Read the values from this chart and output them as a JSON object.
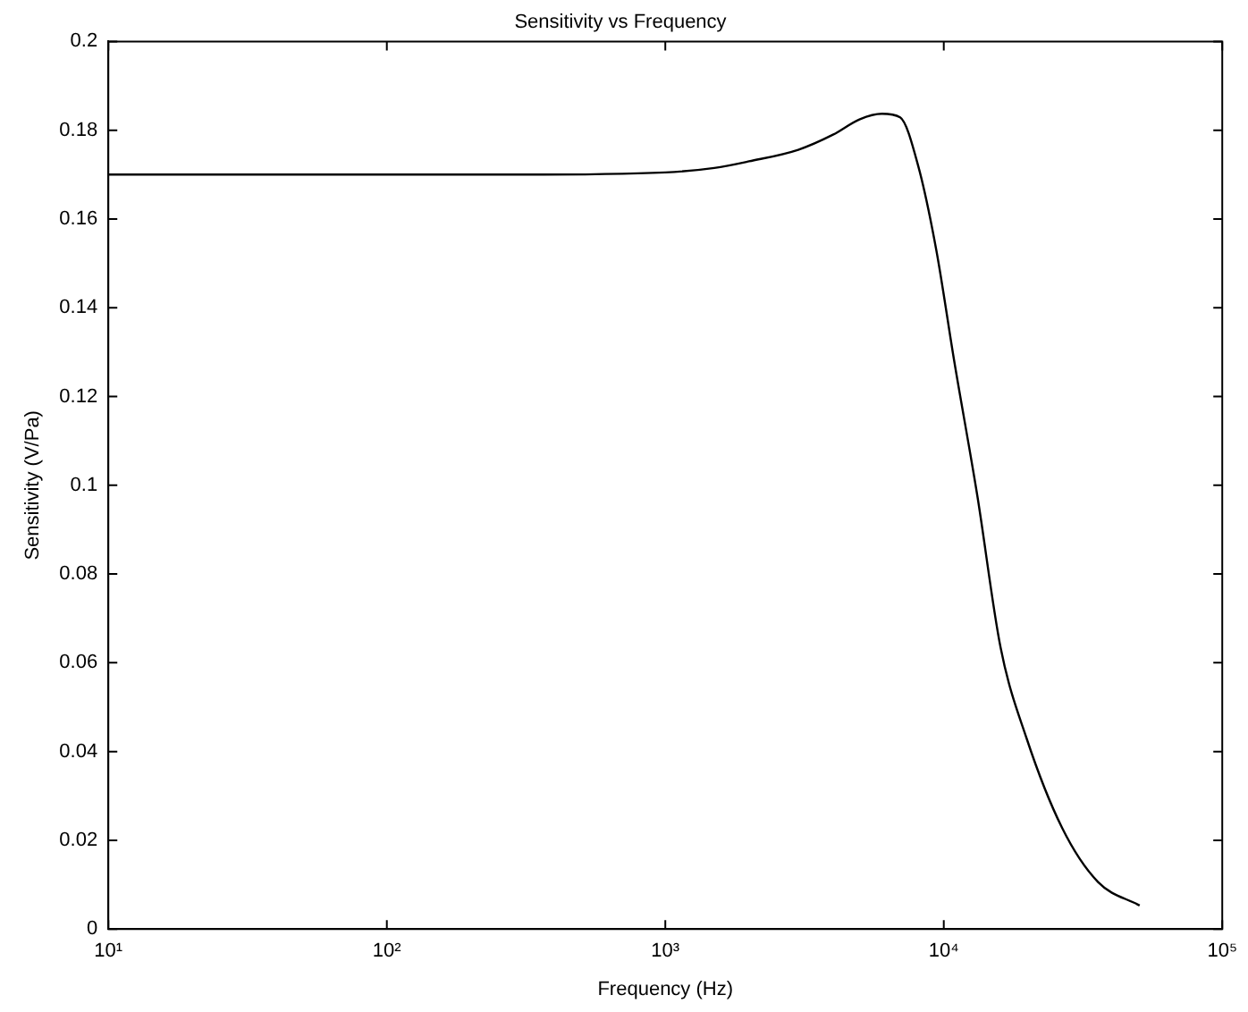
{
  "chart_data": {
    "type": "line",
    "title": "Sensitivity vs Frequency",
    "xlabel": "Frequency (Hz)",
    "ylabel": "Sensitivity (V/Pa)",
    "log": "x",
    "x": [
      10,
      30,
      100,
      300,
      1000,
      1500,
      2000,
      3000,
      4000,
      5000,
      6000,
      6970,
      8090,
      9400,
      10900,
      13200,
      16000,
      19800,
      26600,
      35800,
      50500
    ],
    "series": [
      {
        "color": "#000000",
        "values": [
          0.17,
          0.17,
          0.17,
          0.17,
          0.1705,
          0.1715,
          0.173,
          0.1756,
          0.179,
          0.1825,
          0.1837,
          0.1829,
          0.172,
          0.153,
          0.128,
          0.0976,
          0.0634,
          0.0431,
          0.0228,
          0.0106,
          0.0053
        ]
      }
    ],
    "xlim": [
      10,
      100000
    ],
    "xticks": [
      {
        "value": 10,
        "label": "10¹"
      },
      {
        "value": 100,
        "label": "10²"
      },
      {
        "value": 1000,
        "label": "10³"
      },
      {
        "value": 10000,
        "label": "10⁴"
      },
      {
        "value": 100000,
        "label": "10⁵"
      }
    ],
    "ylim": [
      0,
      0.2
    ],
    "yticks": [
      0,
      0.02,
      0.04,
      0.06,
      0.08,
      0.1,
      0.12,
      0.14,
      0.16,
      0.18,
      0.2
    ],
    "grid": false,
    "legend": false,
    "marker": "none",
    "line_style": "solid"
  }
}
